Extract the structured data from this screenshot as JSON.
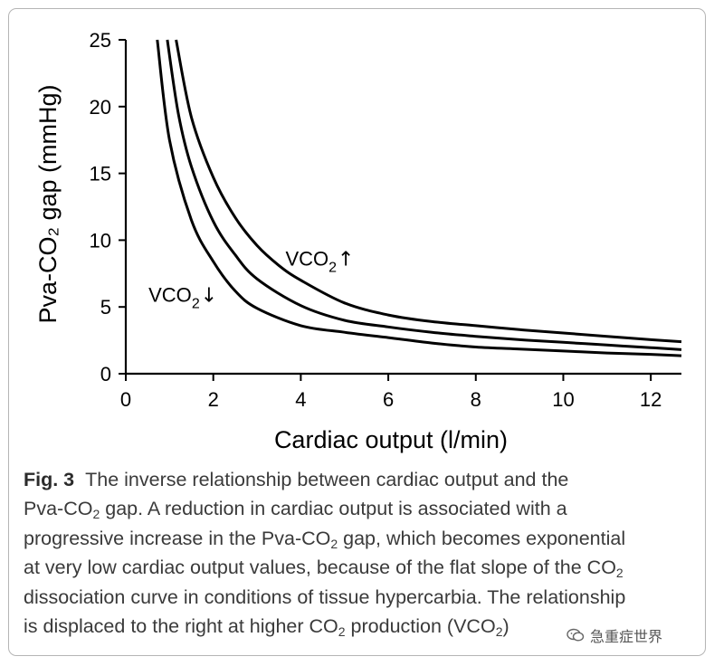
{
  "chart_data": {
    "type": "line",
    "xlabel": "Cardiac output (l/min)",
    "ylabel": "Pva-CO₂ gap (mmHg)",
    "xlim": [
      0,
      12.7
    ],
    "ylim": [
      0,
      25
    ],
    "xticks": [
      0,
      2,
      4,
      6,
      8,
      10,
      12
    ],
    "yticks": [
      0,
      5,
      10,
      15,
      20,
      25
    ],
    "grid": false,
    "line_color": "#000000",
    "series": [
      {
        "x": [
          0.72,
          1.0,
          1.5,
          2.0,
          2.5,
          3.0,
          4.0,
          5.0,
          6.0,
          7.0,
          8.0,
          9.0,
          10.0,
          11.0,
          12.0,
          12.7
        ],
        "y": [
          25,
          17.5,
          11.5,
          8.4,
          6.2,
          4.9,
          3.6,
          3.1,
          2.7,
          2.3,
          2.0,
          1.85,
          1.7,
          1.55,
          1.45,
          1.35
        ]
      },
      {
        "x": [
          0.95,
          1.2,
          1.5,
          2.0,
          2.5,
          3.0,
          4.0,
          5.0,
          6.0,
          7.0,
          8.0,
          9.0,
          10.0,
          11.0,
          12.0,
          12.7
        ],
        "y": [
          25,
          19.5,
          15.5,
          11.4,
          8.9,
          7.1,
          5.1,
          4.0,
          3.5,
          3.1,
          2.8,
          2.55,
          2.35,
          2.15,
          1.95,
          1.8
        ]
      },
      {
        "x": [
          1.15,
          1.5,
          2.0,
          2.5,
          3.0,
          3.5,
          4.0,
          5.0,
          6.0,
          7.0,
          8.0,
          9.0,
          10.0,
          11.0,
          12.0,
          12.7
        ],
        "y": [
          25,
          19.2,
          14.7,
          11.7,
          9.6,
          8.1,
          7.0,
          5.3,
          4.4,
          3.9,
          3.6,
          3.3,
          3.05,
          2.8,
          2.55,
          2.4
        ]
      }
    ],
    "annotations": [
      {
        "text": "VCO",
        "sub": "2",
        "arrow": "↓",
        "x": 0.52,
        "y": 5.4
      },
      {
        "text": "VCO",
        "sub": "2",
        "arrow": "↑",
        "x": 3.65,
        "y": 8.1
      }
    ]
  },
  "caption": {
    "label": "Fig. 3",
    "lines": [
      [
        {
          "t": "The inverse relationship between cardiac output and the"
        }
      ],
      [
        {
          "t": "Pva-CO"
        },
        {
          "sub": "2"
        },
        {
          "t": " gap. A reduction in cardiac output is associated with a"
        }
      ],
      [
        {
          "t": "progressive increase in the Pva-CO"
        },
        {
          "sub": "2"
        },
        {
          "t": " gap, which becomes exponential"
        }
      ],
      [
        {
          "t": "at very low cardiac output values, because of the flat slope of the CO"
        },
        {
          "sub": "2"
        }
      ],
      [
        {
          "t": "dissociation curve in conditions of tissue hypercarbia. The relationship"
        }
      ],
      [
        {
          "t": "is displaced to the right at higher CO"
        },
        {
          "sub": "2"
        },
        {
          "t": " production (VCO"
        },
        {
          "sub": "2"
        },
        {
          "t": ")"
        }
      ]
    ]
  },
  "watermark": {
    "text": "急重症世界",
    "icon": "wechat-icon"
  }
}
